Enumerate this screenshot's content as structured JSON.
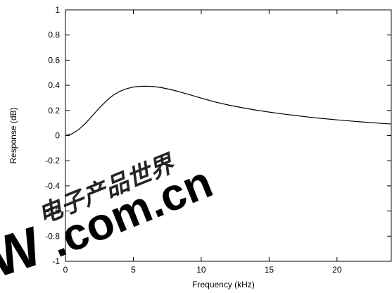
{
  "chart_data": {
    "type": "line",
    "title": "",
    "xlabel": "Frequency (kHz)",
    "ylabel": "Response (dB)",
    "xlim": [
      0,
      24
    ],
    "ylim": [
      -1,
      1
    ],
    "x_ticks": [
      0,
      5,
      10,
      15,
      20
    ],
    "x_tick_labels": [
      "0",
      "5",
      "10",
      "15",
      "20"
    ],
    "y_ticks": [
      -1,
      -0.8,
      -0.6,
      -0.4,
      -0.2,
      0,
      0.2,
      0.4,
      0.6,
      0.8,
      1
    ],
    "y_tick_labels": [
      "-1",
      "-0.8",
      "-0.6",
      "-0.4",
      "-0.2",
      "0",
      "0.2",
      "0.4",
      "0.6",
      "0.8",
      "1"
    ],
    "grid": false,
    "series": [
      {
        "color": "#000000",
        "x": [
          0,
          0.5,
          1,
          1.5,
          2,
          2.5,
          3,
          3.5,
          4,
          4.5,
          5,
          5.5,
          6,
          6.5,
          7,
          7.5,
          8,
          9,
          10,
          11,
          12,
          13,
          14,
          15,
          16,
          17,
          18,
          19,
          20,
          21,
          22,
          23,
          24
        ],
        "y": [
          0.0,
          0.015,
          0.05,
          0.1,
          0.16,
          0.22,
          0.275,
          0.32,
          0.352,
          0.373,
          0.386,
          0.392,
          0.393,
          0.39,
          0.383,
          0.372,
          0.36,
          0.33,
          0.298,
          0.268,
          0.243,
          0.222,
          0.203,
          0.187,
          0.172,
          0.159,
          0.146,
          0.135,
          0.125,
          0.116,
          0.107,
          0.099,
          0.092
        ]
      }
    ]
  },
  "watermark": {
    "text": "电子产品世界",
    "domain": ".com.cn",
    "logo_letter": "W"
  }
}
